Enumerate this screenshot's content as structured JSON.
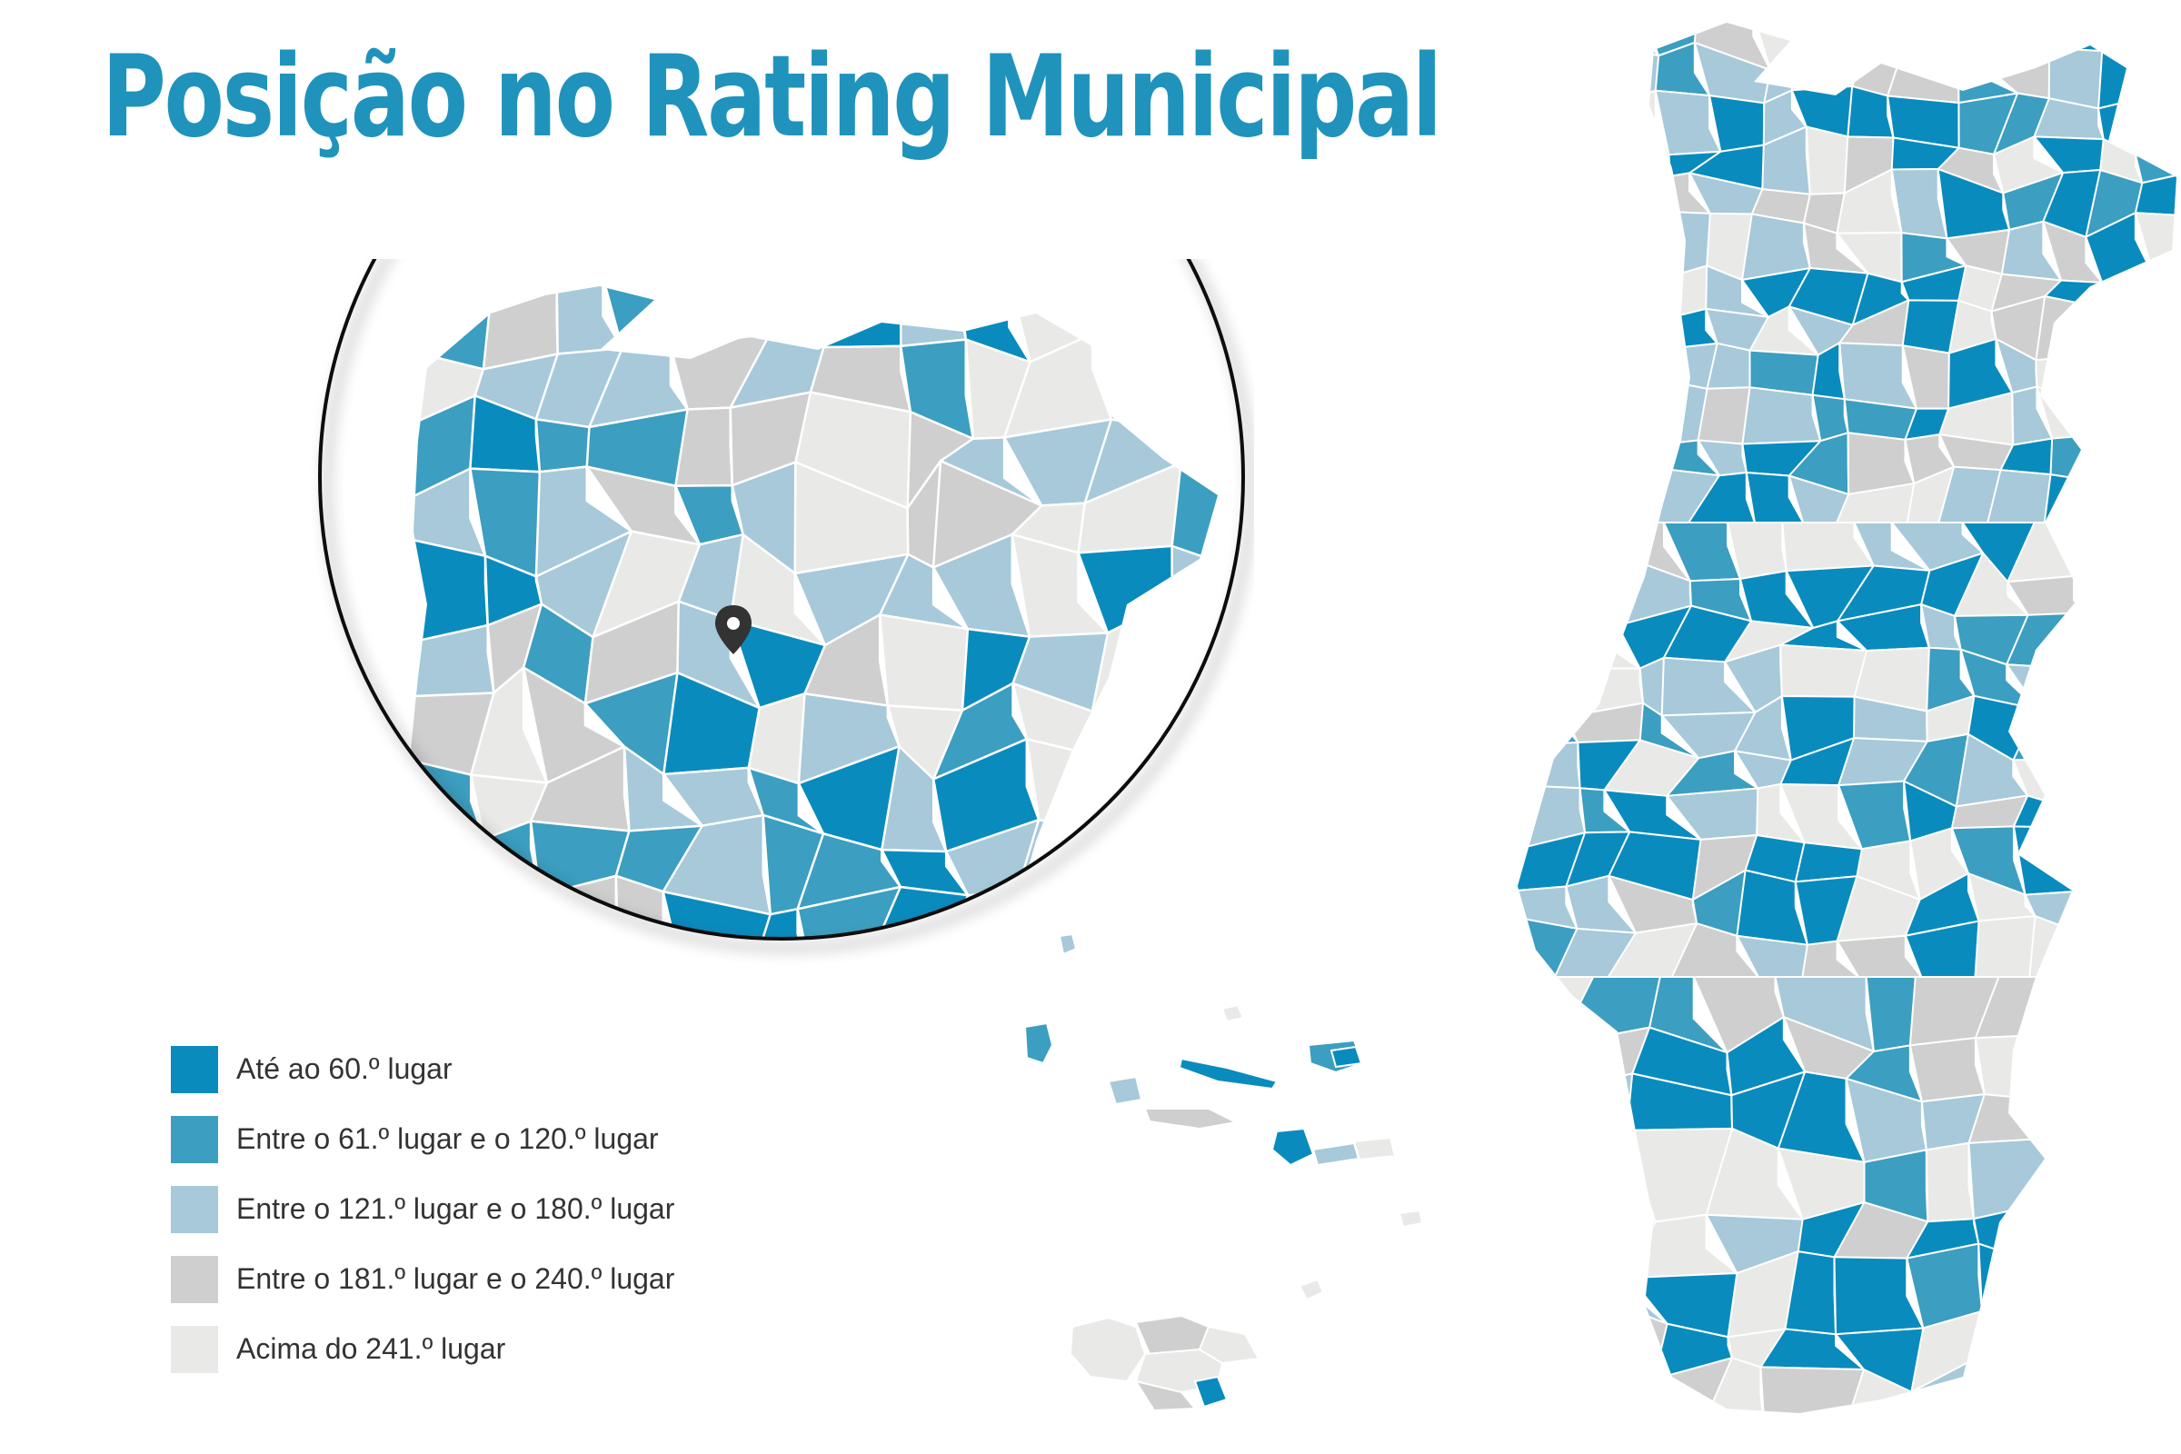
{
  "title": "Posição no Rating Municipal",
  "colors": {
    "tier1": "#0a8bbd",
    "tier2": "#3c9ec0",
    "tier3": "#a7c9da",
    "tier4": "#cfcfcf",
    "tier5": "#e9e9e7",
    "title": "#1f93bc",
    "border": "#ffffff"
  },
  "legend": {
    "items": [
      {
        "label": "Até ao 60.º lugar",
        "color": "#0a8bbd"
      },
      {
        "label": "Entre o 61.º lugar e o 120.º lugar",
        "color": "#3c9ec0"
      },
      {
        "label": "Entre o 121.º lugar e o 180.º lugar",
        "color": "#a7c9da"
      },
      {
        "label": "Entre o 181.º lugar e o 240.º lugar",
        "color": "#cfcfcf"
      },
      {
        "label": "Acima do 241.º lugar",
        "color": "#e9e9e7"
      }
    ]
  },
  "map": {
    "region": "Portugal",
    "inset_focus": "Norte",
    "marker_icon": "map-pin-icon"
  }
}
